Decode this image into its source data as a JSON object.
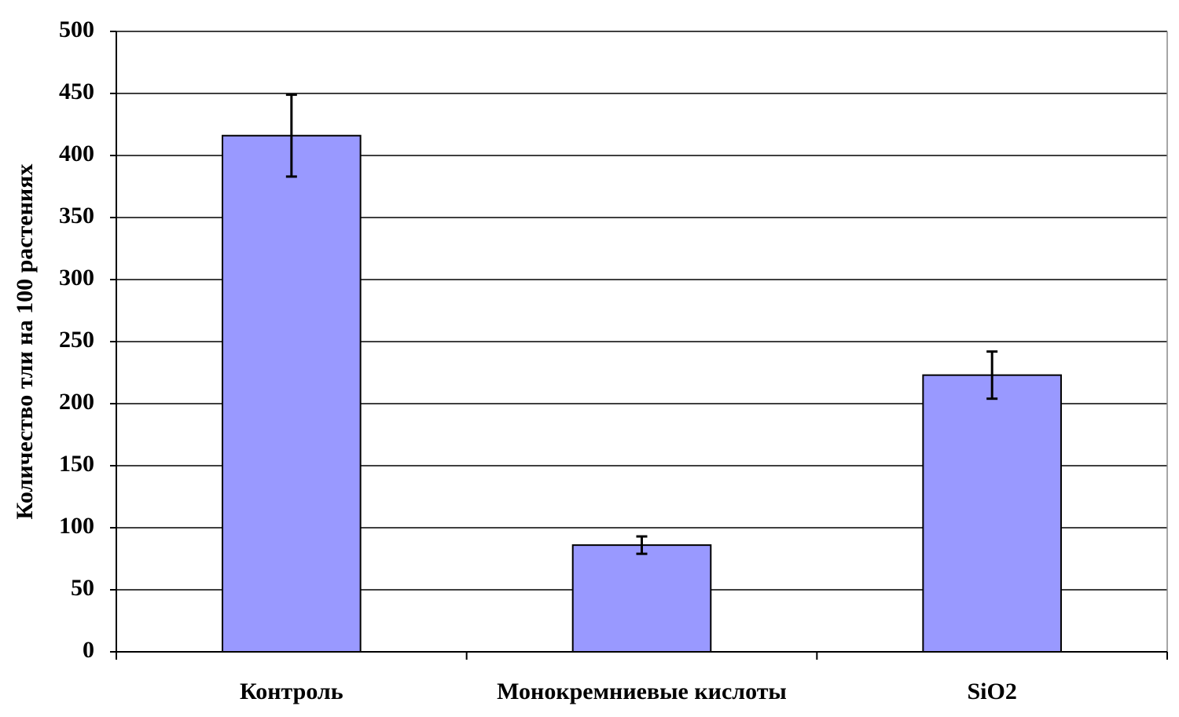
{
  "chart_data": {
    "type": "bar",
    "ylabel": "Количество тли на 100 растениях",
    "categories": [
      "Контроль",
      "Монокремниевые кислоты",
      "SiO2"
    ],
    "values": [
      416,
      86,
      223
    ],
    "errors": [
      33,
      7,
      19
    ],
    "color": "#9999ff",
    "ylim": [
      0,
      500
    ],
    "yticks": [
      0,
      50,
      100,
      150,
      200,
      250,
      300,
      350,
      400,
      450,
      500
    ],
    "grid": true
  }
}
